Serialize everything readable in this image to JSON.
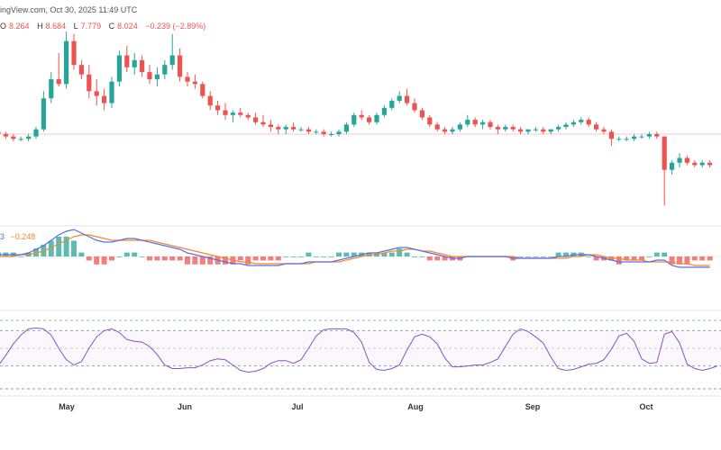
{
  "header": {
    "source_line": "ingView.com, Oct 30, 2025 11:49 UTC",
    "ohlc": {
      "o_label": "O",
      "o": "8.264",
      "h_label": "H",
      "h": "8.684",
      "l_label": "L",
      "l": "7.779",
      "c_label": "C",
      "c": "8.024",
      "change": "−0.239 (−2.89%)"
    },
    "macd_fragment": "3",
    "macd_signal": "−0.248"
  },
  "colors": {
    "up": "#26a69a",
    "down": "#ef5350",
    "macd": "#5b6ee1",
    "signal": "#f5872f",
    "rsi": "#7e57c2",
    "grid": "#e0e3eb"
  },
  "chart_data": {
    "type": "candlestick",
    "x_months": [
      "May",
      "Jun",
      "Jul",
      "Aug",
      "Sep",
      "Oct"
    ],
    "price_guide": 10.0,
    "candles": [
      [
        10.1,
        10.2,
        9.9,
        10.0
      ],
      [
        10.0,
        10.1,
        9.8,
        9.9
      ],
      [
        9.9,
        10.0,
        9.7,
        9.8
      ],
      [
        9.8,
        9.9,
        9.7,
        9.8
      ],
      [
        9.8,
        10.0,
        9.7,
        9.9
      ],
      [
        9.9,
        10.3,
        9.8,
        10.2
      ],
      [
        10.2,
        11.8,
        10.1,
        11.5
      ],
      [
        11.5,
        12.6,
        11.3,
        12.3
      ],
      [
        12.3,
        13.4,
        12.0,
        12.1
      ],
      [
        12.1,
        14.3,
        11.9,
        13.9
      ],
      [
        13.9,
        14.2,
        12.7,
        12.9
      ],
      [
        12.9,
        13.1,
        12.3,
        12.5
      ],
      [
        12.5,
        12.9,
        11.5,
        11.8
      ],
      [
        11.8,
        12.3,
        11.2,
        11.6
      ],
      [
        11.6,
        11.9,
        11.0,
        11.3
      ],
      [
        11.3,
        12.4,
        11.1,
        12.2
      ],
      [
        12.2,
        13.5,
        12.0,
        13.3
      ],
      [
        13.3,
        13.7,
        12.6,
        12.8
      ],
      [
        12.8,
        13.4,
        12.5,
        13.1
      ],
      [
        13.1,
        13.3,
        12.4,
        12.6
      ],
      [
        12.6,
        12.9,
        12.1,
        12.3
      ],
      [
        12.3,
        12.8,
        12.0,
        12.5
      ],
      [
        12.5,
        13.1,
        12.3,
        12.9
      ],
      [
        12.9,
        14.2,
        12.7,
        13.3
      ],
      [
        13.3,
        13.6,
        12.2,
        12.4
      ],
      [
        12.4,
        12.6,
        12.0,
        12.2
      ],
      [
        12.2,
        12.5,
        11.9,
        12.1
      ],
      [
        12.1,
        12.2,
        11.5,
        11.6
      ],
      [
        11.6,
        11.8,
        11.0,
        11.2
      ],
      [
        11.2,
        11.4,
        10.8,
        11.0
      ],
      [
        11.0,
        11.3,
        10.6,
        10.8
      ],
      [
        10.8,
        11.0,
        10.5,
        10.9
      ],
      [
        10.9,
        11.1,
        10.7,
        10.8
      ],
      [
        10.8,
        10.9,
        10.6,
        10.7
      ],
      [
        10.7,
        10.9,
        10.4,
        10.5
      ],
      [
        10.5,
        10.8,
        10.3,
        10.4
      ],
      [
        10.4,
        10.6,
        10.1,
        10.3
      ],
      [
        10.3,
        10.4,
        10.0,
        10.2
      ],
      [
        10.2,
        10.4,
        10.0,
        10.3
      ],
      [
        10.3,
        10.5,
        10.1,
        10.2
      ],
      [
        10.2,
        10.3,
        10.1,
        10.2
      ],
      [
        10.2,
        10.3,
        10.0,
        10.1
      ],
      [
        10.1,
        10.2,
        10.0,
        10.1
      ],
      [
        10.1,
        10.2,
        9.9,
        10.0
      ],
      [
        10.0,
        10.1,
        9.9,
        10.0
      ],
      [
        10.0,
        10.2,
        9.9,
        10.1
      ],
      [
        10.1,
        10.5,
        10.0,
        10.4
      ],
      [
        10.4,
        10.9,
        10.3,
        10.8
      ],
      [
        10.8,
        11.0,
        10.6,
        10.7
      ],
      [
        10.7,
        10.8,
        10.4,
        10.5
      ],
      [
        10.5,
        10.9,
        10.4,
        10.8
      ],
      [
        10.8,
        11.2,
        10.7,
        11.1
      ],
      [
        11.1,
        11.5,
        11.0,
        11.4
      ],
      [
        11.4,
        11.8,
        11.3,
        11.6
      ],
      [
        11.6,
        11.9,
        11.2,
        11.3
      ],
      [
        11.3,
        11.5,
        10.9,
        11.0
      ],
      [
        11.0,
        11.1,
        10.6,
        10.7
      ],
      [
        10.7,
        10.8,
        10.3,
        10.4
      ],
      [
        10.4,
        10.5,
        10.1,
        10.2
      ],
      [
        10.2,
        10.3,
        10.0,
        10.1
      ],
      [
        10.1,
        10.3,
        10.0,
        10.2
      ],
      [
        10.2,
        10.5,
        10.1,
        10.4
      ],
      [
        10.4,
        10.8,
        10.3,
        10.6
      ],
      [
        10.6,
        10.7,
        10.3,
        10.4
      ],
      [
        10.4,
        10.6,
        10.2,
        10.5
      ],
      [
        10.5,
        10.6,
        10.2,
        10.3
      ],
      [
        10.3,
        10.4,
        10.0,
        10.2
      ],
      [
        10.2,
        10.4,
        10.1,
        10.3
      ],
      [
        10.3,
        10.4,
        10.1,
        10.2
      ],
      [
        10.2,
        10.3,
        10.0,
        10.1
      ],
      [
        10.1,
        10.2,
        10.0,
        10.2
      ],
      [
        10.2,
        10.3,
        10.1,
        10.2
      ],
      [
        10.2,
        10.3,
        10.0,
        10.1
      ],
      [
        10.1,
        10.2,
        10.0,
        10.2
      ],
      [
        10.2,
        10.4,
        10.1,
        10.3
      ],
      [
        10.3,
        10.5,
        10.2,
        10.4
      ],
      [
        10.4,
        10.6,
        10.3,
        10.5
      ],
      [
        10.5,
        10.7,
        10.4,
        10.6
      ],
      [
        10.6,
        10.7,
        10.3,
        10.4
      ],
      [
        10.4,
        10.5,
        10.1,
        10.2
      ],
      [
        10.2,
        10.3,
        10.0,
        10.1
      ],
      [
        10.1,
        10.2,
        9.5,
        9.8
      ],
      [
        9.8,
        9.9,
        9.7,
        9.8
      ],
      [
        9.8,
        9.9,
        9.7,
        9.8
      ],
      [
        9.8,
        10.0,
        9.7,
        9.9
      ],
      [
        9.9,
        10.0,
        9.8,
        9.9
      ],
      [
        9.9,
        10.1,
        9.8,
        10.0
      ],
      [
        10.0,
        10.1,
        9.8,
        9.9
      ],
      [
        9.9,
        9.9,
        7.0,
        8.5
      ],
      [
        8.5,
        8.9,
        8.3,
        8.8
      ],
      [
        8.8,
        9.2,
        8.6,
        9.0
      ],
      [
        9.0,
        9.1,
        8.7,
        8.8
      ],
      [
        8.8,
        8.9,
        8.6,
        8.7
      ],
      [
        8.7,
        8.9,
        8.6,
        8.8
      ],
      [
        8.8,
        8.9,
        8.6,
        8.7
      ]
    ],
    "macd": [
      0.1,
      0.1,
      0.1,
      0.1,
      0.2,
      0.4,
      0.6,
      0.9,
      1.2,
      1.4,
      1.5,
      1.3,
      1.1,
      0.9,
      0.8,
      0.8,
      0.9,
      1.0,
      1.0,
      0.9,
      0.8,
      0.7,
      0.6,
      0.5,
      0.4,
      0.2,
      0.1,
      0.0,
      -0.1,
      -0.2,
      -0.3,
      -0.4,
      -0.4,
      -0.5,
      -0.5,
      -0.5,
      -0.5,
      -0.5,
      -0.4,
      -0.4,
      -0.4,
      -0.3,
      -0.3,
      -0.3,
      -0.3,
      -0.2,
      -0.1,
      0.0,
      0.1,
      0.2,
      0.2,
      0.3,
      0.4,
      0.5,
      0.5,
      0.4,
      0.3,
      0.2,
      0.1,
      0.0,
      -0.1,
      -0.1,
      0.0,
      0.0,
      0.0,
      0.0,
      0.0,
      0.0,
      -0.1,
      -0.1,
      -0.1,
      -0.1,
      -0.1,
      -0.1,
      0.0,
      0.0,
      0.1,
      0.1,
      0.1,
      0.0,
      -0.1,
      -0.2,
      -0.3,
      -0.3,
      -0.3,
      -0.3,
      -0.3,
      -0.2,
      -0.2,
      -0.5,
      -0.6,
      -0.6,
      -0.6,
      -0.6,
      -0.6
    ],
    "signal": [
      0.0,
      0.0,
      0.0,
      0.1,
      0.1,
      0.2,
      0.3,
      0.5,
      0.7,
      0.9,
      1.1,
      1.2,
      1.2,
      1.1,
      1.0,
      0.9,
      0.9,
      0.9,
      0.9,
      0.9,
      0.9,
      0.8,
      0.7,
      0.6,
      0.5,
      0.4,
      0.3,
      0.2,
      0.1,
      0.0,
      -0.1,
      -0.2,
      -0.3,
      -0.3,
      -0.4,
      -0.4,
      -0.4,
      -0.4,
      -0.4,
      -0.4,
      -0.4,
      -0.4,
      -0.3,
      -0.3,
      -0.3,
      -0.3,
      -0.2,
      -0.1,
      0.0,
      0.1,
      0.1,
      0.2,
      0.3,
      0.3,
      0.4,
      0.4,
      0.3,
      0.3,
      0.2,
      0.1,
      0.0,
      0.0,
      0.0,
      0.0,
      0.0,
      0.0,
      0.0,
      0.0,
      0.0,
      -0.1,
      -0.1,
      -0.1,
      -0.1,
      -0.1,
      -0.1,
      -0.1,
      0.0,
      0.0,
      0.1,
      0.1,
      0.0,
      -0.1,
      -0.1,
      -0.2,
      -0.2,
      -0.2,
      -0.3,
      -0.3,
      -0.3,
      -0.3,
      -0.4,
      -0.4,
      -0.5,
      -0.5,
      -0.5
    ],
    "rsi": [
      30,
      42,
      55,
      65,
      72,
      73,
      72,
      65,
      50,
      37,
      31,
      35,
      50,
      63,
      70,
      72,
      68,
      60,
      58,
      57,
      52,
      43,
      31,
      27,
      27,
      28,
      28,
      31,
      36,
      38,
      37,
      31,
      25,
      23,
      24,
      27,
      33,
      36,
      36,
      33,
      37,
      50,
      64,
      71,
      72,
      72,
      72,
      68,
      57,
      34,
      26,
      25,
      27,
      31,
      48,
      63,
      66,
      63,
      55,
      39,
      29,
      29,
      30,
      31,
      31,
      34,
      38,
      52,
      66,
      72,
      69,
      63,
      56,
      40,
      27,
      25,
      26,
      29,
      32,
      33,
      37,
      49,
      64,
      67,
      58,
      38,
      33,
      34,
      66,
      69,
      56,
      32,
      27,
      25,
      27,
      30
    ]
  }
}
